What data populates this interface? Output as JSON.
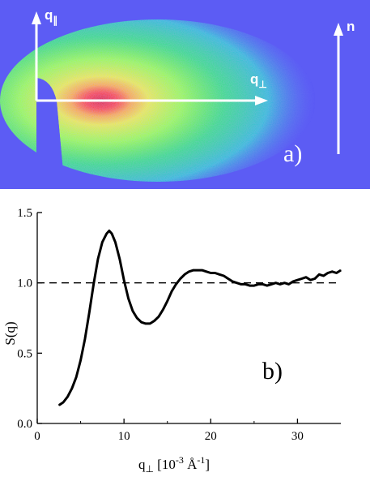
{
  "panel_a": {
    "label": "a)",
    "axis_q_par_label": "q",
    "axis_q_par_sub": "∥",
    "axis_q_perp_label": "q",
    "axis_q_perp_sub": "⊥",
    "director_label": "n",
    "colors": {
      "background": "#5c5cf4",
      "arrow": "#ffffff"
    }
  },
  "chart_data": {
    "type": "line",
    "title": "",
    "panel_label": "b)",
    "xlabel": "q⊥ [10⁻³ Å⁻¹]",
    "xlabel_main": "q",
    "xlabel_sub": "⊥",
    "xlabel_rest": " [10",
    "xlabel_exp1": "-3",
    "xlabel_unit": " Å",
    "xlabel_exp2": "-1",
    "xlabel_close": "]",
    "ylabel": "S(q)",
    "xlim": [
      0,
      35
    ],
    "ylim": [
      0.0,
      1.5
    ],
    "xticks": [
      "0",
      "10",
      "20",
      "30"
    ],
    "xtick_values": [
      0,
      10,
      20,
      30
    ],
    "yticks": [
      "0.0",
      "0.5",
      "1.0",
      "1.5"
    ],
    "ytick_values": [
      0.0,
      0.5,
      1.0,
      1.5
    ],
    "reference_line": {
      "y": 1.0,
      "style": "dashed"
    },
    "grid": false,
    "series": [
      {
        "x": [
          2.5,
          3.0,
          3.5,
          4.0,
          4.5,
          5.0,
          5.5,
          6.0,
          6.5,
          7.0,
          7.5,
          8.0,
          8.3,
          8.6,
          9.0,
          9.5,
          10.0,
          10.5,
          11.0,
          11.5,
          12.0,
          12.5,
          13.0,
          13.5,
          14.0,
          14.5,
          15.0,
          15.5,
          16.0,
          16.5,
          17.0,
          17.5,
          18.0,
          18.5,
          19.0,
          19.5,
          20.0,
          20.5,
          21.0,
          21.5,
          22.0,
          22.5,
          23.0,
          23.5,
          24.0,
          24.5,
          25.0,
          25.5,
          26.0,
          26.5,
          27.0,
          27.5,
          28.0,
          28.5,
          29.0,
          29.5,
          30.0,
          30.5,
          31.0,
          31.5,
          32.0,
          32.5,
          33.0,
          33.5,
          34.0,
          34.5,
          35.0
        ],
        "y": [
          0.13,
          0.15,
          0.19,
          0.25,
          0.33,
          0.45,
          0.6,
          0.79,
          0.99,
          1.17,
          1.29,
          1.35,
          1.37,
          1.35,
          1.29,
          1.17,
          1.02,
          0.89,
          0.8,
          0.75,
          0.72,
          0.71,
          0.71,
          0.73,
          0.76,
          0.81,
          0.87,
          0.94,
          0.99,
          1.03,
          1.06,
          1.08,
          1.09,
          1.09,
          1.09,
          1.08,
          1.07,
          1.07,
          1.06,
          1.05,
          1.03,
          1.01,
          1.0,
          0.99,
          0.99,
          0.98,
          0.98,
          0.99,
          0.99,
          0.98,
          0.99,
          1.0,
          0.99,
          1.0,
          0.99,
          1.01,
          1.02,
          1.03,
          1.04,
          1.02,
          1.03,
          1.06,
          1.05,
          1.07,
          1.08,
          1.07,
          1.09
        ]
      }
    ]
  }
}
